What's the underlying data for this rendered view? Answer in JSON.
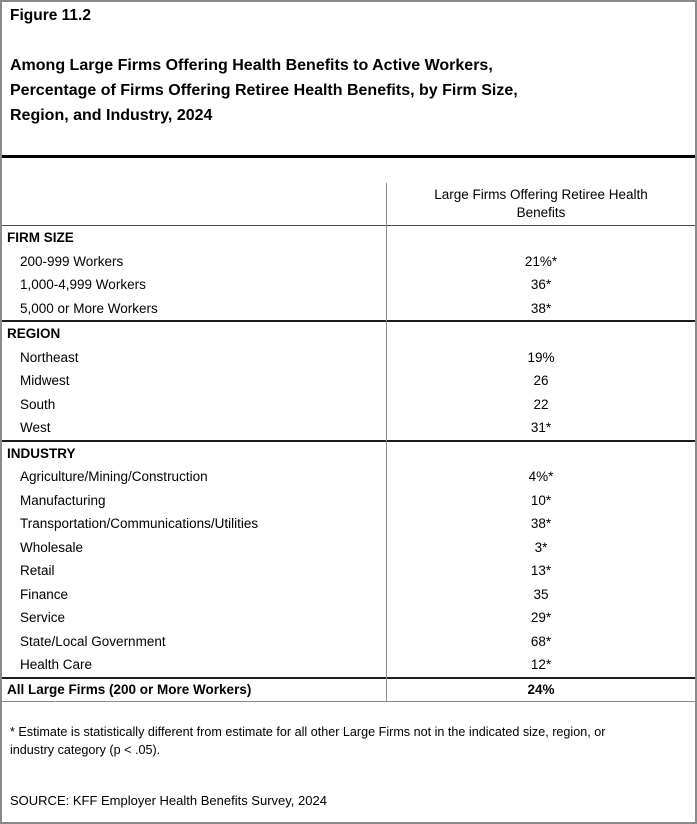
{
  "header": {
    "figure_label": "Figure 11.2",
    "title_lines": [
      "Among Large Firms Offering Health Benefits to Active Workers,",
      "Percentage of Firms Offering Retiree Health Benefits, by Firm Size,",
      "Region, and Industry, 2024"
    ]
  },
  "table": {
    "column_header_lines": [
      "Large Firms Offering Retiree Health",
      "Benefits"
    ],
    "sections": [
      {
        "header": "FIRM SIZE",
        "rows": [
          {
            "label": "200-999 Workers",
            "value": "21%*"
          },
          {
            "label": "1,000-4,999 Workers",
            "value": "36*"
          },
          {
            "label": "5,000 or More Workers",
            "value": "38*"
          }
        ]
      },
      {
        "header": "REGION",
        "rows": [
          {
            "label": "Northeast",
            "value": "19%"
          },
          {
            "label": "Midwest",
            "value": "26"
          },
          {
            "label": "South",
            "value": "22"
          },
          {
            "label": "West",
            "value": "31*"
          }
        ]
      },
      {
        "header": "INDUSTRY",
        "rows": [
          {
            "label": "Agriculture/Mining/Construction",
            "value": "4%*"
          },
          {
            "label": "Manufacturing",
            "value": "10*"
          },
          {
            "label": "Transportation/Communications/Utilities",
            "value": "38*"
          },
          {
            "label": "Wholesale",
            "value": "3*"
          },
          {
            "label": "Retail",
            "value": "13*"
          },
          {
            "label": "Finance",
            "value": "35"
          },
          {
            "label": "Service",
            "value": "29*"
          },
          {
            "label": "State/Local Government",
            "value": "68*"
          },
          {
            "label": "Health Care",
            "value": "12*"
          }
        ]
      }
    ],
    "total_row": {
      "label": "All Large Firms (200 or More Workers)",
      "value": "24%"
    }
  },
  "notes": {
    "footnote_lines": [
      "* Estimate is statistically different from estimate for all other Large Firms not in the indicated size, region, or",
      "industry category (p < .05)."
    ],
    "source": "SOURCE: KFF Employer Health Benefits Survey, 2024"
  },
  "colors": {
    "page_border": "#8a8a8a",
    "title_rule": "#000000",
    "section_rule": "#1c1c1c",
    "column_rule": "#8a8a8a",
    "text": "#000000",
    "background": "#ffffff"
  }
}
